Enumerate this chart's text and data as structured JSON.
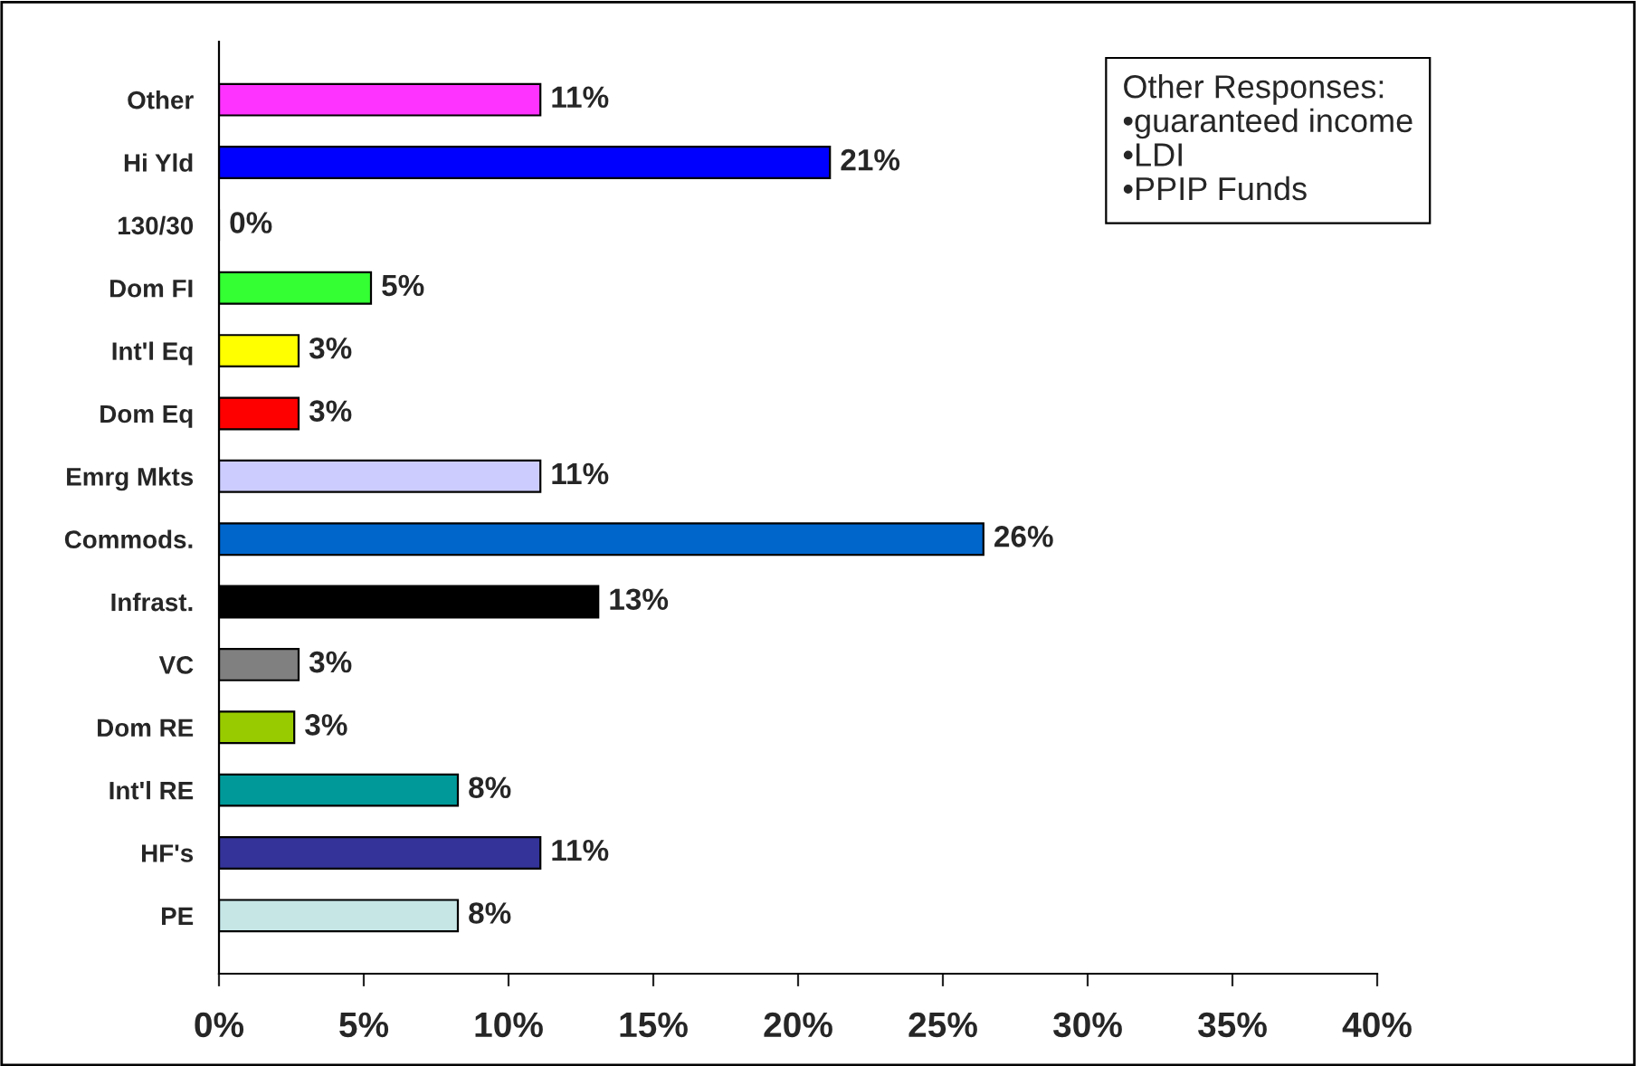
{
  "chart_data": {
    "type": "bar",
    "orientation": "horizontal",
    "categories": [
      "Other",
      "Hi Yld",
      "130/30",
      "Dom FI",
      "Int'l Eq",
      "Dom Eq",
      "Emrg Mkts",
      "Commods.",
      "Infrast.",
      "VC",
      "Dom RE",
      "Int'l RE",
      "HF's",
      "PE"
    ],
    "values": [
      11.1,
      21.1,
      0,
      5.25,
      2.75,
      2.75,
      11.1,
      26.4,
      13.1,
      2.75,
      2.6,
      8.25,
      11.1,
      8.25
    ],
    "value_labels": [
      "11%",
      "21%",
      "0%",
      "5%",
      "3%",
      "3%",
      "11%",
      "26%",
      "13%",
      "3%",
      "3%",
      "8%",
      "11%",
      "8%"
    ],
    "colors": [
      "#ff33ff",
      "#0000ff",
      "#ffffff",
      "#33ff33",
      "#ffff00",
      "#ff0000",
      "#ccccff",
      "#0066cc",
      "#000000",
      "#808080",
      "#99cc00",
      "#009999",
      "#333399",
      "#c6e6e6"
    ],
    "xlim": [
      0,
      40
    ],
    "xticks": [
      {
        "value": 0,
        "label": "0%"
      },
      {
        "value": 5,
        "label": "5%"
      },
      {
        "value": 10,
        "label": "10%"
      },
      {
        "value": 15,
        "label": "15%"
      },
      {
        "value": 20,
        "label": "20%"
      },
      {
        "value": 25,
        "label": "25%"
      },
      {
        "value": 30,
        "label": "30%"
      },
      {
        "value": 35,
        "label": "35%"
      },
      {
        "value": 40,
        "label": "40%"
      }
    ],
    "annotations": [
      "Other Responses:",
      "•guaranteed income",
      "•LDI",
      "•PPIP Funds"
    ],
    "grid": false,
    "legend": false
  }
}
